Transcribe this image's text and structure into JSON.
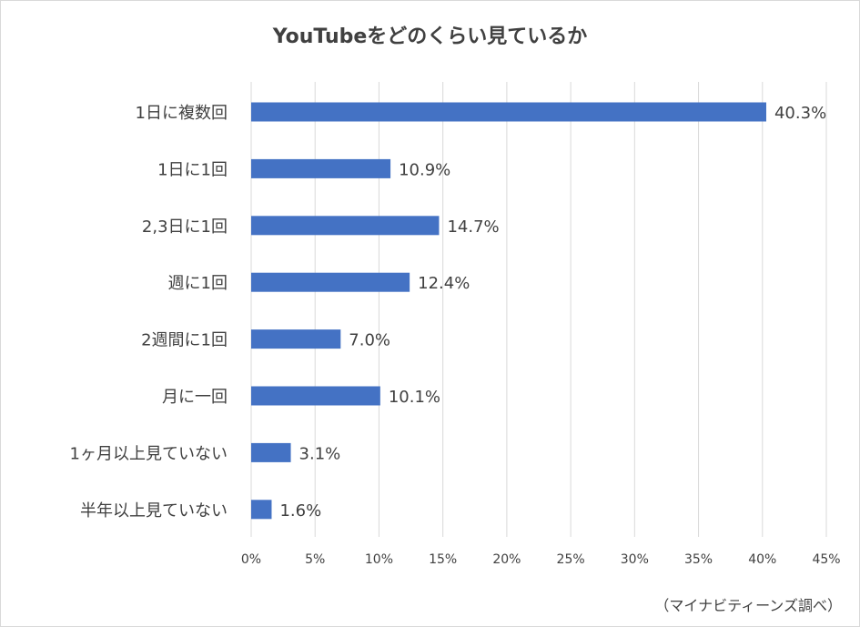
{
  "chart_data": {
    "type": "bar",
    "orientation": "horizontal",
    "title": "YouTubeをどのくらい見ているか",
    "categories": [
      "1日に複数回",
      "1日に1回",
      "2,3日に1回",
      "週に1回",
      "2週間に1回",
      "月に一回",
      "1ヶ月以上見ていない",
      "半年以上見ていない"
    ],
    "values": [
      40.3,
      10.9,
      14.7,
      12.4,
      7.0,
      10.1,
      3.1,
      1.6
    ],
    "value_labels": [
      "40.3%",
      "10.9%",
      "14.7%",
      "12.4%",
      "7.0%",
      "10.1%",
      "3.1%",
      "1.6%"
    ],
    "xlim": [
      0,
      45
    ],
    "xticks": [
      "0%",
      "5%",
      "10%",
      "15%",
      "20%",
      "25%",
      "30%",
      "35%",
      "40%",
      "45%"
    ],
    "grid": true,
    "bar_color": "#4472c4"
  },
  "source_note": "（マイナビティーンズ調べ）"
}
